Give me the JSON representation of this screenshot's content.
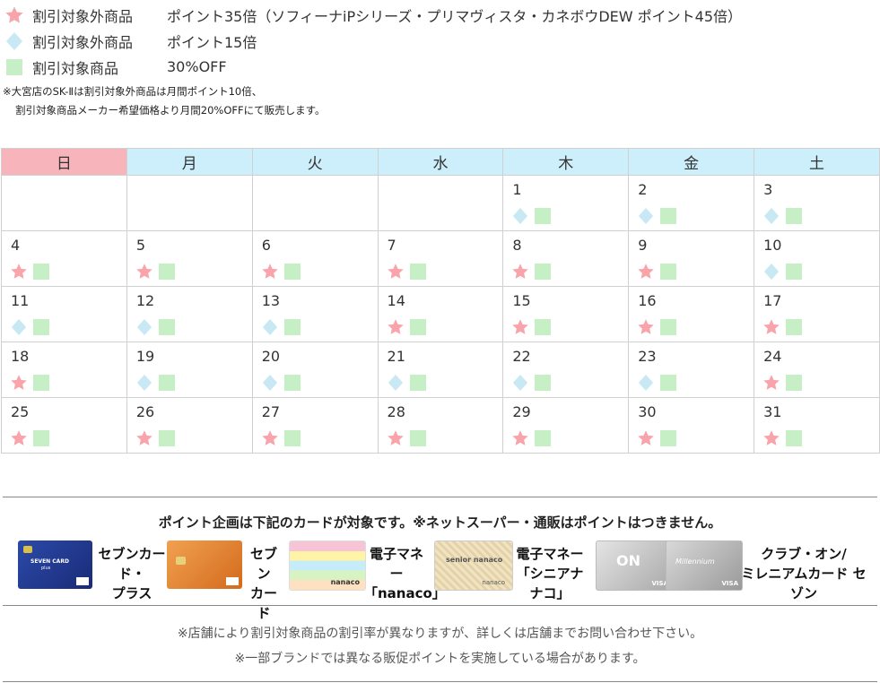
{
  "legend": [
    {
      "icon": "star-icon",
      "category": "割引対象外商品",
      "text": "ポイント35倍（ソフィーナiPシリーズ・プリマヴィスタ・カネボウDEW ポイント45倍）"
    },
    {
      "icon": "diamond-icon",
      "category": "割引対象外商品",
      "text": "ポイント15倍"
    },
    {
      "icon": "square-icon",
      "category": "割引対象商品",
      "text": "30%OFF"
    }
  ],
  "note": {
    "line1": "※大宮店のSK-Ⅱは割引対象外商品は月間ポイント10倍、",
    "line2": "割引対象商品メーカー希望価格より月間20%OFFにて販売します。"
  },
  "colors": {
    "star": "#f9a3ab",
    "diamond": "#c8e8f4",
    "square": "#c6efc6",
    "sunday_header": "#f8b4bb",
    "weekday_header": "#cdeefb"
  },
  "calendar": {
    "weekdays": [
      "日",
      "月",
      "火",
      "水",
      "木",
      "金",
      "土"
    ],
    "weeks": [
      [
        null,
        null,
        null,
        null,
        {
          "day": "1",
          "mark": "diamond"
        },
        {
          "day": "2",
          "mark": "diamond"
        },
        {
          "day": "3",
          "mark": "diamond"
        }
      ],
      [
        {
          "day": "4",
          "mark": "star"
        },
        {
          "day": "5",
          "mark": "star"
        },
        {
          "day": "6",
          "mark": "star"
        },
        {
          "day": "7",
          "mark": "star"
        },
        {
          "day": "8",
          "mark": "star"
        },
        {
          "day": "9",
          "mark": "star"
        },
        {
          "day": "10",
          "mark": "diamond"
        }
      ],
      [
        {
          "day": "11",
          "mark": "diamond"
        },
        {
          "day": "12",
          "mark": "diamond"
        },
        {
          "day": "13",
          "mark": "diamond"
        },
        {
          "day": "14",
          "mark": "star"
        },
        {
          "day": "15",
          "mark": "star"
        },
        {
          "day": "16",
          "mark": "star"
        },
        {
          "day": "17",
          "mark": "star"
        }
      ],
      [
        {
          "day": "18",
          "mark": "star"
        },
        {
          "day": "19",
          "mark": "diamond"
        },
        {
          "day": "20",
          "mark": "diamond"
        },
        {
          "day": "21",
          "mark": "diamond"
        },
        {
          "day": "22",
          "mark": "diamond"
        },
        {
          "day": "23",
          "mark": "diamond"
        },
        {
          "day": "24",
          "mark": "star"
        }
      ],
      [
        {
          "day": "25",
          "mark": "star"
        },
        {
          "day": "26",
          "mark": "star"
        },
        {
          "day": "27",
          "mark": "star"
        },
        {
          "day": "28",
          "mark": "star"
        },
        {
          "day": "29",
          "mark": "star"
        },
        {
          "day": "30",
          "mark": "star"
        },
        {
          "day": "31",
          "mark": "star"
        }
      ]
    ]
  },
  "cards": {
    "title": "ポイント企画は下記のカードが対象です。※ネットスーパー・通販はポイントはつきません。",
    "seven_card_plus": {
      "card_text": "SEVEN CARD",
      "card_sub": "plus",
      "label_line1": "セブンカード・",
      "label_line2": "プラス"
    },
    "seven_card": {
      "label_line1": "セブン",
      "label_line2": "カード"
    },
    "nanaco": {
      "card_text": "nanaco",
      "label_line1": "電子マネー",
      "label_line2": "「nanaco」"
    },
    "senior_nanaco": {
      "card_text": "senior nanaco",
      "card_sub": "nanaco",
      "label_line1": "電子マネー",
      "label_line2": "「シニアナナコ」"
    },
    "club_on": {
      "card_text": "ON",
      "card_text2": "Millennium",
      "brand": "VISA",
      "label_line1": "クラブ・オン/",
      "label_line2": "ミレニアムカード セゾン"
    }
  },
  "footer": {
    "line1": "※店舗により割引対象商品の割引率が異なりますが、詳しくは店舗までお問い合わせ下さい。",
    "line2": "※一部ブランドでは異なる販促ポイントを実施している場合があります。"
  }
}
